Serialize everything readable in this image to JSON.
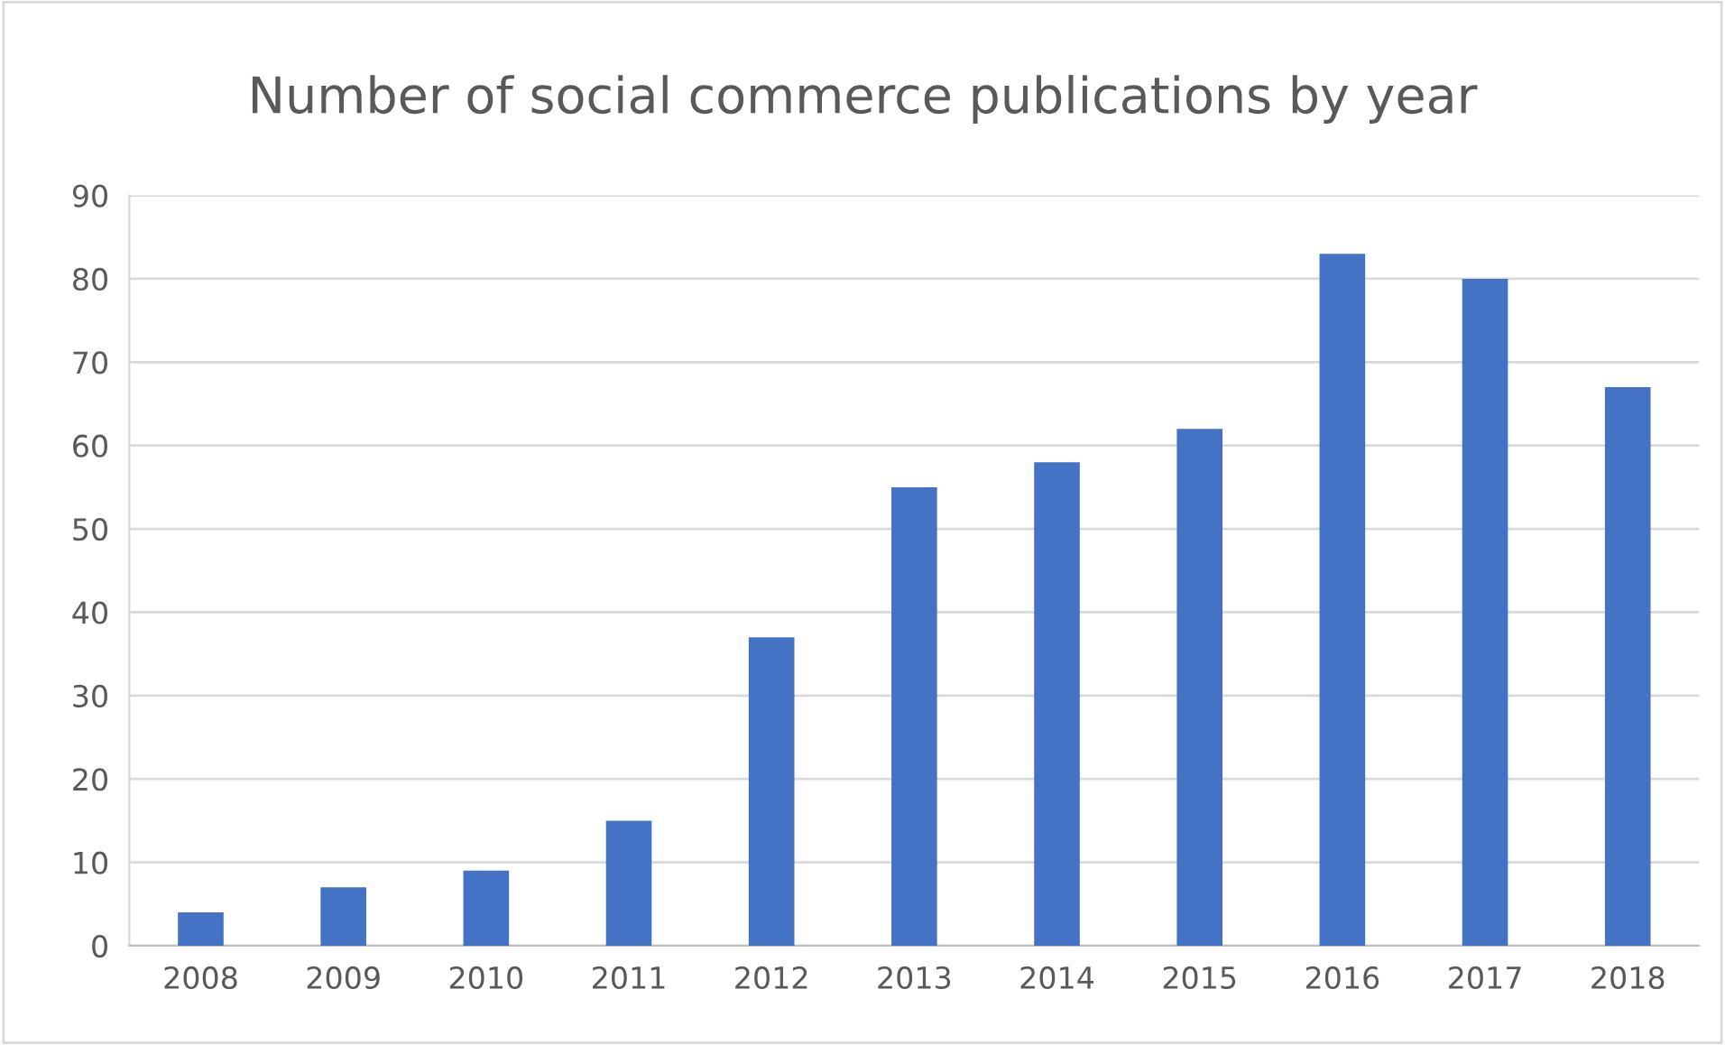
{
  "chart_data": {
    "type": "bar",
    "title": "Number of social commerce publications by year",
    "categories": [
      "2008",
      "2009",
      "2010",
      "2011",
      "2012",
      "2013",
      "2014",
      "2015",
      "2016",
      "2017",
      "2018"
    ],
    "values": [
      4,
      7,
      9,
      15,
      37,
      55,
      58,
      62,
      83,
      80,
      67
    ],
    "color": "#4472c4",
    "ylim": [
      0,
      90
    ],
    "yticks": [
      0,
      10,
      20,
      30,
      40,
      50,
      60,
      70,
      80,
      90
    ],
    "grid": "y"
  }
}
